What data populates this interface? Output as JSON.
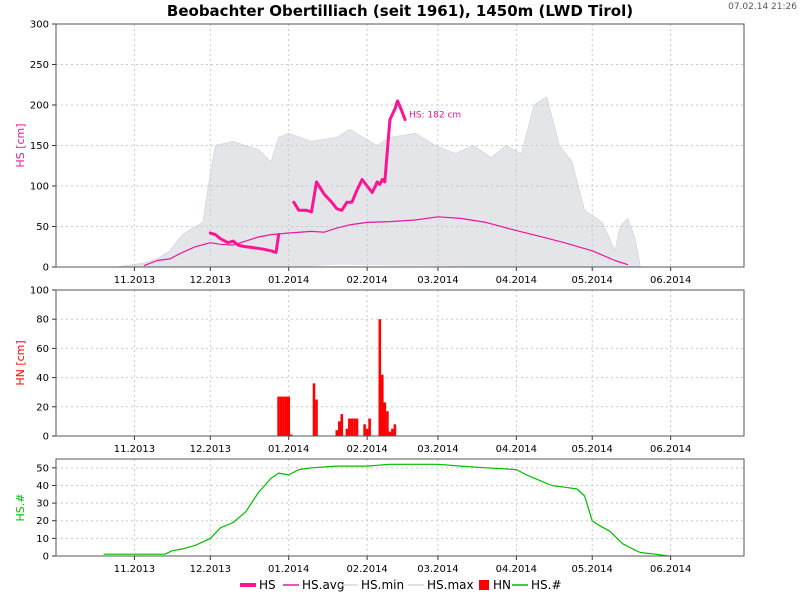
{
  "title": "Beobachter Obertilliach (seit 1961), 1450m (LWD Tirol)",
  "timestamp": "07.02.14 21:26",
  "colors": {
    "hs": "#ff1493",
    "hs_avg": "#e8189a",
    "hn": "#ff0000",
    "hs_count": "#00bb00",
    "range_fill": "#e3e5e8",
    "grid": "#c8c8c8"
  },
  "legend": [
    "HS",
    "HS.avg",
    "HS.min",
    "HS.max",
    "HN",
    "HS.#"
  ],
  "chart_data": [
    {
      "type": "area",
      "ylabel": "HS [cm]",
      "ylim": [
        0,
        300
      ],
      "yticks": [
        0,
        50,
        100,
        150,
        200,
        250,
        300
      ],
      "xlim": [
        "2013-10-01",
        "2014-06-30"
      ],
      "xtick_labels": [
        "11.2013",
        "12.2013",
        "01.2014",
        "02.2014",
        "03.2014",
        "04.2014",
        "05.2014",
        "06.2014"
      ],
      "grid": true,
      "annotation": "HS: 182 cm",
      "series": [
        {
          "name": "HS.max",
          "x": [
            "2013-10-25",
            "2013-11-05",
            "2013-11-10",
            "2013-11-15",
            "2013-11-20",
            "2013-11-28",
            "2013-12-01",
            "2013-12-03",
            "2013-12-10",
            "2013-12-20",
            "2013-12-25",
            "2013-12-28",
            "2014-01-01",
            "2014-01-10",
            "2014-01-20",
            "2014-01-25",
            "2014-02-05",
            "2014-02-10",
            "2014-02-20",
            "2014-02-28",
            "2014-03-08",
            "2014-03-15",
            "2014-03-22",
            "2014-03-28",
            "2014-04-03",
            "2014-04-08",
            "2014-04-13",
            "2014-04-18",
            "2014-04-23",
            "2014-04-28",
            "2014-05-05",
            "2014-05-10",
            "2014-05-12",
            "2014-05-15",
            "2014-05-18",
            "2014-05-20"
          ],
          "values": [
            0,
            5,
            10,
            20,
            40,
            55,
            115,
            150,
            155,
            145,
            130,
            160,
            165,
            155,
            160,
            170,
            150,
            160,
            165,
            150,
            140,
            150,
            135,
            150,
            140,
            200,
            210,
            150,
            130,
            70,
            55,
            20,
            50,
            60,
            35,
            0
          ]
        },
        {
          "name": "HS.min",
          "x": [
            "2013-12-15",
            "2014-01-10",
            "2014-01-20",
            "2014-03-10"
          ],
          "values": [
            0,
            0,
            2,
            0
          ]
        },
        {
          "name": "HS.avg",
          "x": [
            "2013-11-05",
            "2013-11-10",
            "2013-11-15",
            "2013-11-20",
            "2013-11-25",
            "2013-12-01",
            "2013-12-05",
            "2013-12-10",
            "2013-12-15",
            "2013-12-20",
            "2013-12-25",
            "2014-01-01",
            "2014-01-10",
            "2014-01-15",
            "2014-01-20",
            "2014-01-25",
            "2014-02-01",
            "2014-02-10",
            "2014-02-20",
            "2014-03-01",
            "2014-03-10",
            "2014-03-20",
            "2014-04-01",
            "2014-04-10",
            "2014-04-20",
            "2014-05-01",
            "2014-05-10",
            "2014-05-15"
          ],
          "values": [
            2,
            8,
            10,
            18,
            25,
            30,
            28,
            27,
            32,
            37,
            40,
            42,
            44,
            43,
            48,
            52,
            55,
            56,
            58,
            62,
            60,
            55,
            45,
            38,
            30,
            20,
            8,
            3
          ]
        },
        {
          "name": "HS",
          "x": [
            "2013-12-01",
            "2013-12-03",
            "2013-12-05",
            "2013-12-08",
            "2013-12-10",
            "2013-12-12",
            "2013-12-15",
            "2013-12-18",
            "2013-12-22",
            "2013-12-25",
            "2013-12-27",
            "2013-12-28",
            "2014-01-01",
            "2014-01-03",
            "2014-01-05",
            "2014-01-08",
            "2014-01-10",
            "2014-01-12",
            "2014-01-15",
            "2014-01-18",
            "2014-01-20",
            "2014-01-22",
            "2014-01-24",
            "2014-01-26",
            "2014-01-28",
            "2014-01-30",
            "2014-02-01",
            "2014-02-03",
            "2014-02-04",
            "2014-02-05",
            "2014-02-06",
            "2014-02-07",
            "2014-02-08",
            "2014-02-10",
            "2014-02-12",
            "2014-02-13",
            "2014-02-14",
            "2014-02-16"
          ],
          "values": [
            42,
            40,
            35,
            30,
            32,
            27,
            25,
            24,
            22,
            20,
            18,
            40,
            null,
            80,
            70,
            70,
            68,
            105,
            90,
            80,
            72,
            70,
            80,
            80,
            95,
            108,
            100,
            92,
            98,
            105,
            102,
            108,
            105,
            182,
            195,
            205,
            198,
            182
          ]
        }
      ]
    },
    {
      "type": "bar",
      "ylabel": "HN [cm]",
      "ylim": [
        0,
        100
      ],
      "yticks": [
        0,
        20,
        40,
        60,
        80,
        100
      ],
      "xlim": [
        "2013-10-01",
        "2014-06-30"
      ],
      "xtick_labels": [
        "11.2013",
        "12.2013",
        "01.2014",
        "02.2014",
        "03.2014",
        "04.2014",
        "05.2014",
        "06.2014"
      ],
      "grid": true,
      "series": [
        {
          "name": "HN",
          "x": [
            "2013-12-28",
            "2013-12-29",
            "2013-12-30",
            "2013-12-31",
            "2014-01-01",
            "2014-01-02",
            "2014-01-11",
            "2014-01-12",
            "2014-01-20",
            "2014-01-21",
            "2014-01-22",
            "2014-01-24",
            "2014-01-25",
            "2014-01-26",
            "2014-01-27",
            "2014-01-28",
            "2014-01-31",
            "2014-02-01",
            "2014-02-02",
            "2014-02-06",
            "2014-02-07",
            "2014-02-08",
            "2014-02-09",
            "2014-02-10",
            "2014-02-11",
            "2014-02-12"
          ],
          "values": [
            27,
            27,
            27,
            27,
            27,
            1,
            36,
            25,
            4,
            10,
            15,
            5,
            12,
            12,
            12,
            12,
            8,
            5,
            12,
            80,
            42,
            23,
            17,
            3,
            5,
            8
          ]
        }
      ]
    },
    {
      "type": "line",
      "ylabel": "HS.#",
      "ylim": [
        0,
        55
      ],
      "yticks": [
        0,
        10,
        20,
        30,
        40,
        50
      ],
      "xlim": [
        "2013-10-01",
        "2014-06-30"
      ],
      "xtick_labels": [
        "11.2013",
        "12.2013",
        "01.2014",
        "02.2014",
        "03.2014",
        "04.2014",
        "05.2014",
        "06.2014"
      ],
      "grid": true,
      "series": [
        {
          "name": "HS.#",
          "x": [
            "2013-10-20",
            "2013-10-22",
            "2013-11-13",
            "2013-11-16",
            "2013-11-20",
            "2013-11-25",
            "2013-12-01",
            "2013-12-05",
            "2013-12-10",
            "2013-12-15",
            "2013-12-20",
            "2013-12-25",
            "2013-12-28",
            "2014-01-01",
            "2014-01-05",
            "2014-01-10",
            "2014-01-20",
            "2014-02-01",
            "2014-02-10",
            "2014-02-20",
            "2014-03-01",
            "2014-03-10",
            "2014-03-20",
            "2014-04-01",
            "2014-04-05",
            "2014-04-10",
            "2014-04-15",
            "2014-04-20",
            "2014-04-25",
            "2014-04-28",
            "2014-05-01",
            "2014-05-03",
            "2014-05-08",
            "2014-05-13",
            "2014-05-17",
            "2014-05-20",
            "2014-05-26",
            "2014-05-31",
            "2014-06-01"
          ],
          "values": [
            1,
            1,
            1,
            3,
            4,
            6,
            10,
            16,
            19,
            25,
            36,
            44,
            47,
            46,
            49,
            50,
            51,
            51,
            52,
            52,
            52,
            51,
            50,
            49,
            46,
            43,
            40,
            39,
            38,
            34,
            20,
            18,
            14,
            7,
            4,
            2,
            1,
            0,
            0
          ]
        }
      ]
    }
  ]
}
